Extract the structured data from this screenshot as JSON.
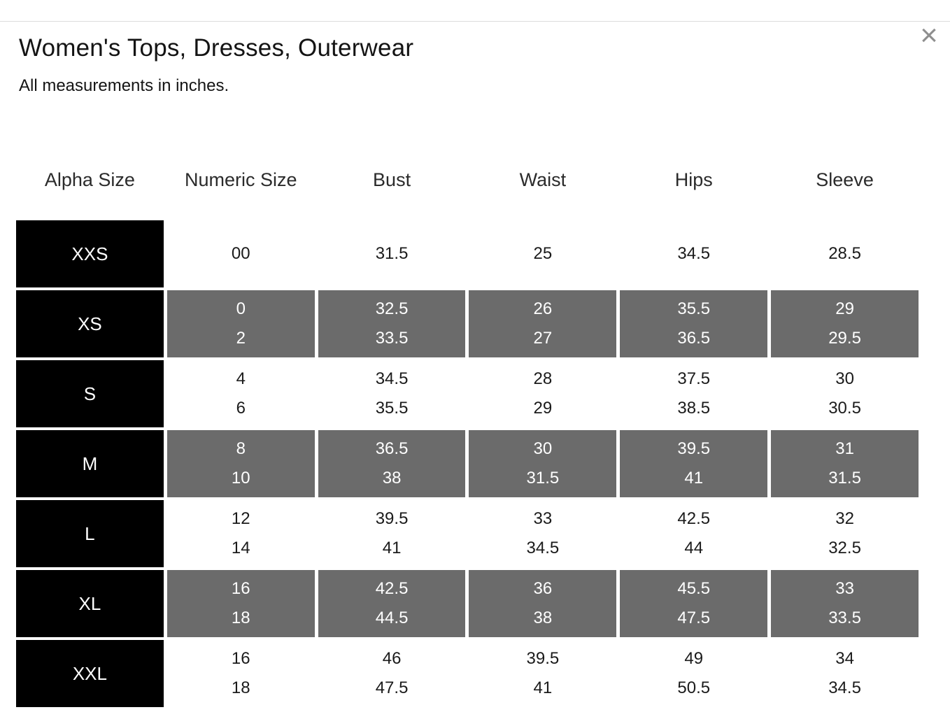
{
  "modal": {
    "title": "Women's Tops, Dresses, Outerwear",
    "subtitle": "All measurements in inches.",
    "close_icon": "×"
  },
  "colors": {
    "black_cell": "#000000",
    "gray_cell": "#6b6b6b",
    "cell_text_light": "#ffffff",
    "cell_text_dark": "#1b1b1b",
    "divider": "#dcdcdc",
    "close_icon": "#8f8f8f"
  },
  "size_table": {
    "columns": [
      "Alpha Size",
      "Numeric Size",
      "Bust",
      "Waist",
      "Hips",
      "Sleeve"
    ],
    "rows": [
      {
        "alpha": "XXS",
        "shaded": false,
        "numeric": [
          "00"
        ],
        "bust": [
          "31.5"
        ],
        "waist": [
          "25"
        ],
        "hips": [
          "34.5"
        ],
        "sleeve": [
          "28.5"
        ]
      },
      {
        "alpha": "XS",
        "shaded": true,
        "numeric": [
          "0",
          "2"
        ],
        "bust": [
          "32.5",
          "33.5"
        ],
        "waist": [
          "26",
          "27"
        ],
        "hips": [
          "35.5",
          "36.5"
        ],
        "sleeve": [
          "29",
          "29.5"
        ]
      },
      {
        "alpha": "S",
        "shaded": false,
        "numeric": [
          "4",
          "6"
        ],
        "bust": [
          "34.5",
          "35.5"
        ],
        "waist": [
          "28",
          "29"
        ],
        "hips": [
          "37.5",
          "38.5"
        ],
        "sleeve": [
          "30",
          "30.5"
        ]
      },
      {
        "alpha": "M",
        "shaded": true,
        "numeric": [
          "8",
          "10"
        ],
        "bust": [
          "36.5",
          "38"
        ],
        "waist": [
          "30",
          "31.5"
        ],
        "hips": [
          "39.5",
          "41"
        ],
        "sleeve": [
          "31",
          "31.5"
        ]
      },
      {
        "alpha": "L",
        "shaded": false,
        "numeric": [
          "12",
          "14"
        ],
        "bust": [
          "39.5",
          "41"
        ],
        "waist": [
          "33",
          "34.5"
        ],
        "hips": [
          "42.5",
          "44"
        ],
        "sleeve": [
          "32",
          "32.5"
        ]
      },
      {
        "alpha": "XL",
        "shaded": true,
        "numeric": [
          "16",
          "18"
        ],
        "bust": [
          "42.5",
          "44.5"
        ],
        "waist": [
          "36",
          "38"
        ],
        "hips": [
          "45.5",
          "47.5"
        ],
        "sleeve": [
          "33",
          "33.5"
        ]
      },
      {
        "alpha": "XXL",
        "shaded": false,
        "numeric": [
          "16",
          "18"
        ],
        "bust": [
          "46",
          "47.5"
        ],
        "waist": [
          "39.5",
          "41"
        ],
        "hips": [
          "49",
          "50.5"
        ],
        "sleeve": [
          "34",
          "34.5"
        ]
      }
    ]
  }
}
